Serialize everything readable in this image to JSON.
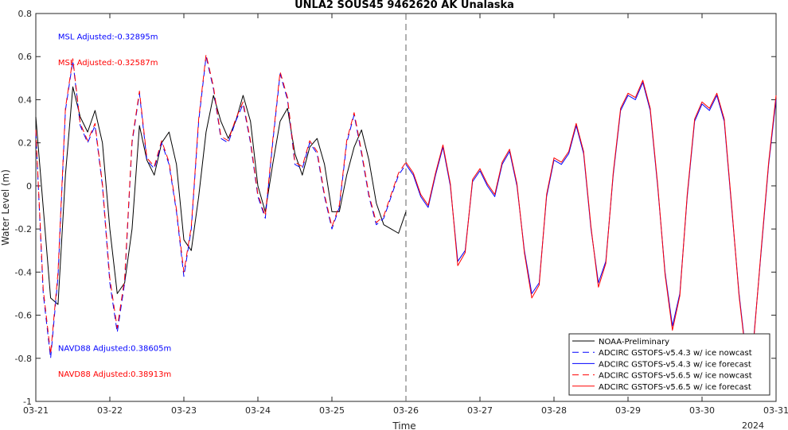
{
  "chart_data": {
    "type": "line",
    "title": "UNLA2 SOUS45 9462620 AK Unalaska",
    "xlabel": "Time",
    "ylabel": "Water Level (m)",
    "xlim": [
      0,
      10
    ],
    "ylim": [
      -1,
      0.8
    ],
    "grid": false,
    "legend_position": "bottom-right",
    "x_tick_values": [
      0,
      1,
      2,
      3,
      4,
      5,
      6,
      7,
      8,
      9,
      10
    ],
    "x_tick_labels": [
      "03-21",
      "03-22",
      "03-23",
      "03-24",
      "03-25",
      "03-26",
      "03-27",
      "03-28",
      "03-29",
      "03-30",
      "03-31"
    ],
    "x_secondary_label": "2024",
    "y_tick_values": [
      -1,
      -0.8,
      -0.6,
      -0.4,
      -0.2,
      0,
      0.2,
      0.4,
      0.6,
      0.8
    ],
    "y_tick_labels": [
      "-1",
      "-0.8",
      "-0.6",
      "-0.4",
      "-0.2",
      "0",
      "0.2",
      "0.4",
      "0.6",
      "0.8"
    ],
    "vertical_line_x": 5,
    "annotations": [
      {
        "text": "MSL Adjusted:-0.32895m",
        "color": "#0000ff",
        "x": 0.3,
        "y": 0.68
      },
      {
        "text": "MSL Adjusted:-0.32587m",
        "color": "#ff0000",
        "x": 0.3,
        "y": 0.56
      },
      {
        "text": "NAVD88 Adjusted:0.38605m",
        "color": "#0000ff",
        "x": 0.3,
        "y": -0.765
      },
      {
        "text": "NAVD88 Adjusted:0.38913m",
        "color": "#ff0000",
        "x": 0.3,
        "y": -0.885
      }
    ],
    "series": [
      {
        "name": "NOAA-Preliminary",
        "color": "#000000",
        "dash": "solid",
        "x": [
          0,
          0.1,
          0.2,
          0.3,
          0.4,
          0.5,
          0.6,
          0.7,
          0.8,
          0.9,
          1.0,
          1.1,
          1.2,
          1.3,
          1.4,
          1.5,
          1.6,
          1.7,
          1.8,
          1.9,
          2.0,
          2.1,
          2.2,
          2.3,
          2.4,
          2.5,
          2.6,
          2.7,
          2.8,
          2.9,
          3.0,
          3.1,
          3.2,
          3.3,
          3.4,
          3.5,
          3.6,
          3.7,
          3.8,
          3.9,
          4.0,
          4.1,
          4.2,
          4.3,
          4.4,
          4.5,
          4.6,
          4.7,
          4.8,
          4.9,
          5.0
        ],
        "y": [
          0.32,
          -0.1,
          -0.52,
          -0.55,
          0.05,
          0.46,
          0.32,
          0.25,
          0.35,
          0.2,
          -0.2,
          -0.5,
          -0.45,
          -0.2,
          0.28,
          0.12,
          0.05,
          0.2,
          0.25,
          0.1,
          -0.25,
          -0.3,
          -0.05,
          0.25,
          0.42,
          0.3,
          0.22,
          0.3,
          0.42,
          0.3,
          0.0,
          -0.12,
          0.1,
          0.3,
          0.36,
          0.15,
          0.05,
          0.18,
          0.22,
          0.1,
          -0.12,
          -0.12,
          0.05,
          0.18,
          0.26,
          0.12,
          -0.08,
          -0.18,
          -0.2,
          -0.22,
          -0.12
        ]
      },
      {
        "name": "ADCIRC GSTOFS-v5.4.3 w/ ice nowcast",
        "color": "#0000ff",
        "dash": "dashed",
        "x": [
          0,
          0.1,
          0.2,
          0.3,
          0.4,
          0.5,
          0.6,
          0.7,
          0.8,
          0.9,
          1.0,
          1.1,
          1.2,
          1.3,
          1.4,
          1.5,
          1.6,
          1.7,
          1.8,
          1.9,
          2.0,
          2.1,
          2.2,
          2.3,
          2.4,
          2.5,
          2.6,
          2.7,
          2.8,
          2.9,
          3.0,
          3.1,
          3.2,
          3.3,
          3.4,
          3.5,
          3.6,
          3.7,
          3.8,
          3.9,
          4.0,
          4.1,
          4.2,
          4.3,
          4.4,
          4.5,
          4.6,
          4.7,
          4.8,
          4.9,
          5.0
        ],
        "y": [
          0.25,
          -0.5,
          -0.8,
          -0.42,
          0.35,
          0.58,
          0.28,
          0.2,
          0.28,
          0.0,
          -0.45,
          -0.68,
          -0.45,
          0.2,
          0.43,
          0.12,
          0.08,
          0.2,
          0.1,
          -0.12,
          -0.42,
          -0.2,
          0.3,
          0.6,
          0.45,
          0.22,
          0.2,
          0.3,
          0.38,
          0.2,
          -0.05,
          -0.15,
          0.2,
          0.52,
          0.4,
          0.1,
          0.08,
          0.2,
          0.15,
          -0.05,
          -0.2,
          -0.1,
          0.2,
          0.33,
          0.15,
          -0.05,
          -0.18,
          -0.15,
          -0.05,
          0.05,
          0.1
        ]
      },
      {
        "name": "ADCIRC GSTOFS-v5.4.3 w/ ice forecast",
        "color": "#0000ff",
        "dash": "solid",
        "x": [
          5.0,
          5.1,
          5.2,
          5.3,
          5.4,
          5.5,
          5.6,
          5.7,
          5.8,
          5.9,
          6.0,
          6.1,
          6.2,
          6.3,
          6.4,
          6.5,
          6.6,
          6.7,
          6.8,
          6.9,
          7.0,
          7.1,
          7.2,
          7.3,
          7.4,
          7.5,
          7.6,
          7.7,
          7.8,
          7.9,
          8.0,
          8.1,
          8.2,
          8.3,
          8.4,
          8.5,
          8.6,
          8.7,
          8.8,
          8.9,
          9.0,
          9.1,
          9.2,
          9.3,
          9.4,
          9.5,
          9.6,
          9.7,
          9.8,
          9.9,
          10.0
        ],
        "y": [
          0.1,
          0.05,
          -0.05,
          -0.1,
          0.05,
          0.18,
          0.0,
          -0.35,
          -0.3,
          0.02,
          0.07,
          0.0,
          -0.05,
          0.1,
          0.16,
          0.0,
          -0.3,
          -0.5,
          -0.45,
          -0.05,
          0.12,
          0.1,
          0.15,
          0.28,
          0.15,
          -0.2,
          -0.45,
          -0.35,
          0.05,
          0.35,
          0.42,
          0.4,
          0.48,
          0.35,
          0.0,
          -0.4,
          -0.65,
          -0.5,
          -0.05,
          0.3,
          0.38,
          0.35,
          0.42,
          0.3,
          -0.1,
          -0.5,
          -0.8,
          -0.7,
          -0.3,
          0.1,
          0.4
        ]
      },
      {
        "name": "ADCIRC GSTOFS-v5.6.5 w/ ice nowcast",
        "color": "#ff0000",
        "dash": "dashed",
        "x": [
          0,
          0.1,
          0.2,
          0.3,
          0.4,
          0.5,
          0.6,
          0.7,
          0.8,
          0.9,
          1.0,
          1.1,
          1.2,
          1.3,
          1.4,
          1.5,
          1.6,
          1.7,
          1.8,
          1.9,
          2.0,
          2.1,
          2.2,
          2.3,
          2.4,
          2.5,
          2.6,
          2.7,
          2.8,
          2.9,
          3.0,
          3.1,
          3.2,
          3.3,
          3.4,
          3.5,
          3.6,
          3.7,
          3.8,
          3.9,
          4.0,
          4.1,
          4.2,
          4.3,
          4.4,
          4.5,
          4.6,
          4.7,
          4.8,
          4.9,
          5.0
        ],
        "y": [
          0.26,
          -0.48,
          -0.78,
          -0.4,
          0.36,
          0.59,
          0.29,
          0.21,
          0.29,
          0.01,
          -0.43,
          -0.66,
          -0.43,
          0.21,
          0.44,
          0.13,
          0.09,
          0.21,
          0.11,
          -0.11,
          -0.4,
          -0.19,
          0.31,
          0.61,
          0.46,
          0.23,
          0.21,
          0.31,
          0.39,
          0.21,
          -0.04,
          -0.14,
          0.21,
          0.53,
          0.41,
          0.11,
          0.09,
          0.21,
          0.16,
          -0.04,
          -0.19,
          -0.09,
          0.21,
          0.34,
          0.16,
          -0.04,
          -0.17,
          -0.14,
          -0.04,
          0.06,
          0.11
        ]
      },
      {
        "name": "ADCIRC GSTOFS-v5.6.5 w/ ice forecast",
        "color": "#ff0000",
        "dash": "solid",
        "x": [
          5.0,
          5.1,
          5.2,
          5.3,
          5.4,
          5.5,
          5.6,
          5.7,
          5.8,
          5.9,
          6.0,
          6.1,
          6.2,
          6.3,
          6.4,
          6.5,
          6.6,
          6.7,
          6.8,
          6.9,
          7.0,
          7.1,
          7.2,
          7.3,
          7.4,
          7.5,
          7.6,
          7.7,
          7.8,
          7.9,
          8.0,
          8.1,
          8.2,
          8.3,
          8.4,
          8.5,
          8.6,
          8.7,
          8.8,
          8.9,
          9.0,
          9.1,
          9.2,
          9.3,
          9.4,
          9.5,
          9.6,
          9.7,
          9.8,
          9.9,
          10.0
        ],
        "y": [
          0.11,
          0.06,
          -0.04,
          -0.09,
          0.06,
          0.19,
          0.01,
          -0.37,
          -0.31,
          0.03,
          0.08,
          0.01,
          -0.04,
          0.11,
          0.17,
          0.01,
          -0.31,
          -0.52,
          -0.46,
          -0.04,
          0.13,
          0.11,
          0.16,
          0.29,
          0.16,
          -0.19,
          -0.47,
          -0.36,
          0.06,
          0.36,
          0.43,
          0.41,
          0.49,
          0.36,
          0.01,
          -0.41,
          -0.67,
          -0.51,
          -0.04,
          0.31,
          0.39,
          0.36,
          0.43,
          0.31,
          -0.09,
          -0.51,
          -0.81,
          -0.71,
          -0.29,
          0.11,
          0.42
        ]
      }
    ]
  }
}
